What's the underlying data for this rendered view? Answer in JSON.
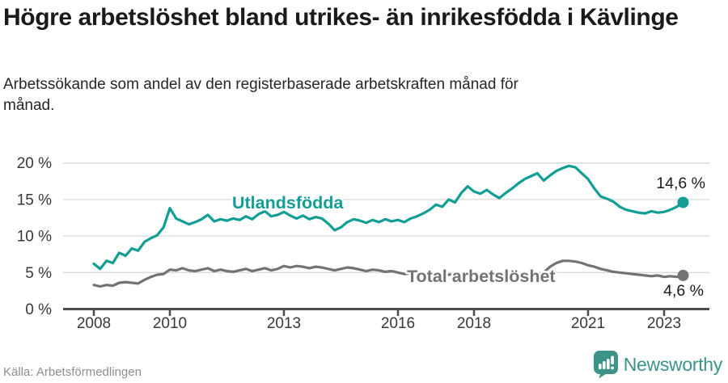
{
  "header": {
    "title": "Högre arbetslöshet bland utrikes- än inrikesfödda i Kävlinge",
    "subtitle": "Arbetssökande som andel av den registerbaserade arbetskraften månad för månad."
  },
  "footer": {
    "source": "Källa: Arbetsförmedlingen",
    "brand": "Newsworthy"
  },
  "colors": {
    "accent_teal": "#129e94",
    "line_gray": "#737373",
    "axis": "#4c4c4c",
    "grid": "#d9d9d9",
    "text_dark": "#1a1a1a",
    "tick_text": "#383838",
    "muted_text": "#8f8f8f",
    "brand_teal": "#3c9489"
  },
  "chart_data": {
    "type": "line",
    "title": "",
    "xlabel": "",
    "ylabel": "",
    "x_unit": "year (monthly observations)",
    "x_start_year": 2008,
    "x_step_months": 2,
    "x_end_year": 2023.5,
    "ylim": [
      0,
      20
    ],
    "ytick_values": [
      0,
      5,
      10,
      15,
      20
    ],
    "ytick_labels": [
      "0 %",
      "5 %",
      "10 %",
      "15 %",
      "20 %"
    ],
    "xtick_values": [
      2008,
      2010,
      2013,
      2016,
      2018,
      2021,
      2023
    ],
    "xtick_labels": [
      "2008",
      "2010",
      "2013",
      "2016",
      "2018",
      "2021",
      "2023"
    ],
    "grid": "horizontal",
    "legend_position": "inline-labels",
    "series": [
      {
        "name": "Utlandsfödda",
        "color": "#129e94",
        "end_label": "14,6 %",
        "end_value": 14.6,
        "values": [
          6.2,
          5.5,
          6.6,
          6.3,
          7.7,
          7.3,
          8.3,
          8.0,
          9.2,
          9.7,
          10.1,
          11.2,
          13.8,
          12.4,
          12.0,
          11.6,
          11.9,
          12.3,
          12.9,
          12.0,
          12.3,
          12.1,
          12.4,
          12.2,
          12.7,
          12.3,
          13.0,
          13.4,
          12.7,
          12.9,
          13.3,
          12.8,
          12.4,
          12.8,
          12.3,
          12.6,
          12.4,
          11.7,
          10.8,
          11.2,
          11.9,
          12.3,
          12.1,
          11.8,
          12.2,
          11.9,
          12.3,
          12.0,
          12.2,
          11.9,
          12.4,
          12.7,
          13.1,
          13.6,
          14.3,
          14.0,
          15.0,
          14.6,
          15.9,
          16.8,
          16.1,
          15.8,
          16.3,
          15.7,
          15.2,
          15.9,
          16.5,
          17.2,
          17.8,
          18.2,
          18.6,
          17.6,
          18.3,
          18.9,
          19.3,
          19.6,
          19.4,
          18.6,
          17.8,
          16.5,
          15.4,
          15.1,
          14.7,
          14.0,
          13.6,
          13.4,
          13.2,
          13.1,
          13.4,
          13.2,
          13.3,
          13.6,
          14.0,
          14.6
        ]
      },
      {
        "name": "Total arbetslöshet",
        "color": "#737373",
        "end_label": "4,6 %",
        "end_value": 4.6,
        "values": [
          3.3,
          3.1,
          3.3,
          3.2,
          3.6,
          3.7,
          3.6,
          3.5,
          4.0,
          4.4,
          4.7,
          4.8,
          5.4,
          5.3,
          5.6,
          5.3,
          5.2,
          5.4,
          5.6,
          5.2,
          5.4,
          5.2,
          5.1,
          5.3,
          5.5,
          5.2,
          5.4,
          5.6,
          5.3,
          5.5,
          5.9,
          5.7,
          5.9,
          5.8,
          5.6,
          5.8,
          5.7,
          5.5,
          5.3,
          5.5,
          5.7,
          5.6,
          5.4,
          5.2,
          5.4,
          5.3,
          5.1,
          5.2,
          5.0,
          4.8,
          4.9,
          4.7,
          4.8,
          4.6,
          4.7,
          4.5,
          4.7,
          4.8,
          4.6,
          4.8,
          4.9,
          4.7,
          4.8,
          4.6,
          4.5,
          4.7,
          4.6,
          4.8,
          4.7,
          4.9,
          4.8,
          5.0,
          5.8,
          6.3,
          6.6,
          6.6,
          6.5,
          6.3,
          6.0,
          5.8,
          5.5,
          5.3,
          5.1,
          5.0,
          4.9,
          4.8,
          4.7,
          4.6,
          4.5,
          4.6,
          4.4,
          4.5,
          4.4,
          4.6
        ]
      }
    ]
  }
}
